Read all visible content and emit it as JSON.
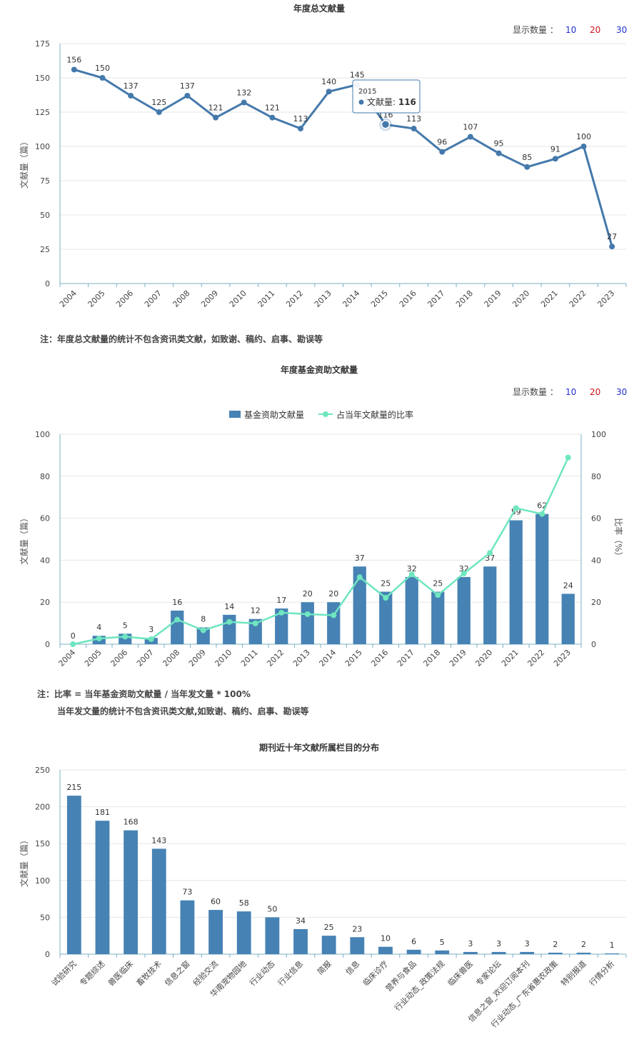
{
  "controls": {
    "label": "显示数量 ：",
    "options": [
      "10",
      "20",
      "30"
    ]
  },
  "colors": {
    "line": "#4479ab",
    "bar": "#4682b4",
    "ratio": "#6ee6c0",
    "grid": "#e6e6e6",
    "axis": "#7db0c6"
  },
  "chart_data": [
    {
      "type": "line",
      "title": "年度总文献量",
      "ylabel": "文献量（篇）",
      "xlabel": "",
      "ylim": [
        0,
        175
      ],
      "yticks": [
        0,
        25,
        50,
        75,
        100,
        125,
        150,
        175
      ],
      "categories": [
        "2004",
        "2005",
        "2006",
        "2007",
        "2008",
        "2009",
        "2010",
        "2011",
        "2012",
        "2013",
        "2014",
        "2015",
        "2016",
        "2017",
        "2018",
        "2019",
        "2020",
        "2021",
        "2022",
        "2023"
      ],
      "values": [
        156,
        150,
        137,
        125,
        137,
        121,
        132,
        121,
        113,
        140,
        145,
        116,
        113,
        96,
        107,
        95,
        85,
        91,
        100,
        27
      ],
      "grid": true,
      "tooltip": {
        "year": "2015",
        "label": "文献量: ",
        "value": "116"
      },
      "note": "注：年度总文献量的统计不包含资讯类文献，如致谢、稿约、启事、勘误等"
    },
    {
      "type": "bar",
      "title": "年度基金资助文献量",
      "ylabel": "文献量（篇）",
      "y2label": "比率（%）",
      "xlabel": "",
      "ylim": [
        0,
        100
      ],
      "y2lim": [
        0,
        100
      ],
      "yticks": [
        0,
        20,
        40,
        60,
        80,
        100
      ],
      "categories": [
        "2004",
        "2005",
        "2006",
        "2007",
        "2008",
        "2009",
        "2010",
        "2011",
        "2012",
        "2013",
        "2014",
        "2015",
        "2016",
        "2017",
        "2018",
        "2019",
        "2020",
        "2021",
        "2022",
        "2023"
      ],
      "series": [
        {
          "name": "基金资助文献量",
          "type": "bar",
          "values": [
            0,
            4,
            5,
            3,
            16,
            8,
            14,
            12,
            17,
            20,
            20,
            37,
            25,
            32,
            25,
            32,
            37,
            59,
            62,
            24
          ]
        },
        {
          "name": "占当年文献量的比率",
          "type": "line",
          "values": [
            0,
            2.7,
            3.6,
            2.4,
            11.7,
            6.6,
            10.6,
            9.9,
            15.0,
            14.3,
            13.8,
            31.9,
            22.1,
            33.3,
            23.4,
            33.7,
            43.5,
            64.8,
            62.0,
            88.9
          ]
        }
      ],
      "legend": "top-center",
      "grid": true,
      "note_lines": [
        "注：比率 = 当年基金资助文献量 / 当年发文量 * 100%",
        "当年发文量的统计不包含资讯类文献,如致谢、稿约、启事、勘误等"
      ]
    },
    {
      "type": "bar",
      "title": "期刊近十年文献所属栏目的分布",
      "ylabel": "文献量（篇）",
      "xlabel": "",
      "ylim": [
        0,
        250
      ],
      "yticks": [
        0,
        50,
        100,
        150,
        200,
        250
      ],
      "categories": [
        "试验研究",
        "专题综述",
        "兽医临床",
        "畜牧技术",
        "信息之窗",
        "经验交流",
        "华南宠物园地",
        "行业动态",
        "行业信息",
        "简报",
        "信息",
        "临床诊疗",
        "营养与食品",
        "行业动态_政策法规",
        "临床兽医",
        "专家论坛",
        "信息之窗_欢迎订阅本刊",
        "行业动态_广东省惠农政策",
        "特别报道",
        "行情分析"
      ],
      "values": [
        215,
        181,
        168,
        143,
        73,
        60,
        58,
        50,
        34,
        25,
        23,
        10,
        6,
        5,
        3,
        3,
        3,
        2,
        2,
        1
      ],
      "grid": true
    }
  ]
}
